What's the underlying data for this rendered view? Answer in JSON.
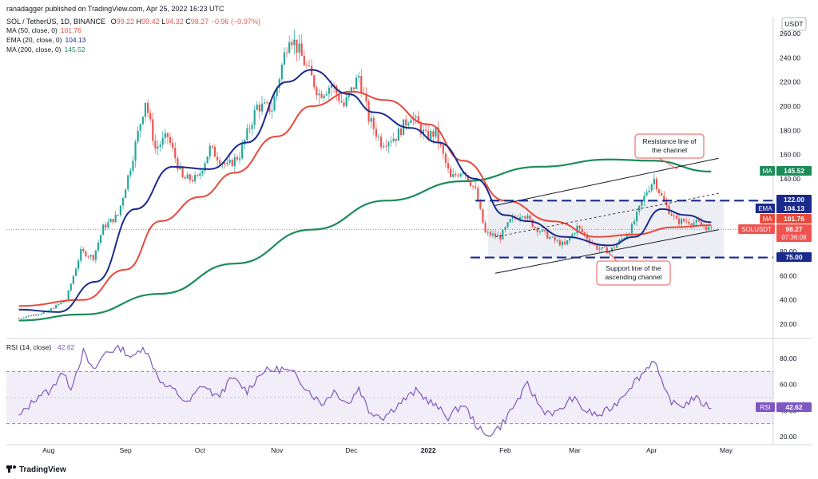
{
  "header": {
    "published": "ranadagger published on TradingView.com, Apr 25, 2022 16:23 UTC",
    "symbol_line": "SOL / TetherUS, 1D, BINANCE",
    "o_label": "O",
    "o_value": "99.22",
    "h_label": "H",
    "h_value": "99.42",
    "l_label": "L",
    "l_value": "94.32",
    "c_label": "C",
    "c_value": "98.27",
    "change": "−0.96 (−0.97%)",
    "currency": "USDT"
  },
  "indicators": [
    {
      "label": "MA (50, close, 0)",
      "value": "101.76",
      "color": "#e8493b"
    },
    {
      "label": "EMA (20, close, 0)",
      "value": "104.13",
      "color": "#1a2a8c"
    },
    {
      "label": "MA (200, close, 0)",
      "value": "145.52",
      "color": "#1b8c5a"
    }
  ],
  "colors": {
    "up": "#26a69a",
    "down": "#ef5350",
    "ma50": "#e8493b",
    "ema20": "#1a2a8c",
    "ma200": "#1b8c5a",
    "rsi": "#7e57c2",
    "level": "#1a2a8c"
  },
  "price_axis": {
    "ticks": [
      "260.00",
      "240.00",
      "220.00",
      "200.00",
      "180.00",
      "160.00",
      "140.00",
      "120.00",
      "100.00",
      "80.00",
      "60.00",
      "40.00",
      "20.00"
    ]
  },
  "rsi_axis": {
    "ticks": [
      "80.00",
      "60.00",
      "40.00",
      "20.00"
    ]
  },
  "time_axis": {
    "labels": [
      "Aug",
      "Sep",
      "Oct",
      "Nov",
      "Dec",
      "2022",
      "Feb",
      "Mar",
      "Apr",
      "May"
    ]
  },
  "price_badges": [
    {
      "tag": "MA",
      "value": "145.52",
      "color": "#1b8c5a"
    },
    {
      "tag": "",
      "value": "122.00",
      "color": "#1a2a8c"
    },
    {
      "tag": "EMA",
      "value": "104.13",
      "color": "#1a2a8c"
    },
    {
      "tag": "MA",
      "value": "101.76",
      "color": "#e8493b"
    },
    {
      "tag": "SOLUSDT",
      "value": "98.27",
      "sub": "07:36:08",
      "color": "#ef5350"
    },
    {
      "tag": "",
      "value": "75.00",
      "color": "#1a2a8c"
    }
  ],
  "rsi_badge": {
    "tag": "RSI",
    "value": "42.62"
  },
  "rsi_legend": "RSI (14, close)",
  "rsi_legend_value": "42.62",
  "annotations": {
    "resistance": [
      "Resistance line of",
      "the channel"
    ],
    "support": [
      "Support line of the",
      "ascending channel"
    ]
  },
  "branding": "TradingView",
  "chart_data": {
    "type": "candlestick",
    "title": "SOL / TetherUS, 1D, BINANCE",
    "x_range": [
      "2022-07-15",
      "2022-05-10"
    ],
    "y_range": [
      15,
      265
    ],
    "horizontal_levels": [
      122,
      75
    ],
    "price_path": [
      [
        "2021-07-20",
        25
      ],
      [
        "2021-07-31",
        30
      ],
      [
        "2021-08-08",
        40
      ],
      [
        "2021-08-14",
        80
      ],
      [
        "2021-08-19",
        75
      ],
      [
        "2021-08-23",
        100
      ],
      [
        "2021-08-29",
        110
      ],
      [
        "2021-09-03",
        150
      ],
      [
        "2021-09-09",
        205
      ],
      [
        "2021-09-13",
        165
      ],
      [
        "2021-09-18",
        175
      ],
      [
        "2021-09-24",
        140
      ],
      [
        "2021-09-30",
        140
      ],
      [
        "2021-10-05",
        165
      ],
      [
        "2021-10-12",
        150
      ],
      [
        "2021-10-17",
        160
      ],
      [
        "2021-10-24",
        200
      ],
      [
        "2021-10-30",
        198
      ],
      [
        "2021-11-06",
        260
      ],
      [
        "2021-11-10",
        245
      ],
      [
        "2021-11-18",
        210
      ],
      [
        "2021-11-23",
        218
      ],
      [
        "2021-11-28",
        200
      ],
      [
        "2021-12-04",
        225
      ],
      [
        "2021-12-08",
        190
      ],
      [
        "2021-12-13",
        170
      ],
      [
        "2021-12-19",
        175
      ],
      [
        "2021-12-25",
        193
      ],
      [
        "2021-12-31",
        175
      ],
      [
        "2022-01-04",
        178
      ],
      [
        "2022-01-10",
        140
      ],
      [
        "2022-01-15",
        148
      ],
      [
        "2022-01-20",
        130
      ],
      [
        "2022-01-24",
        95
      ],
      [
        "2022-01-30",
        92
      ],
      [
        "2022-02-03",
        105
      ],
      [
        "2022-02-08",
        112
      ],
      [
        "2022-02-13",
        100
      ],
      [
        "2022-02-20",
        90
      ],
      [
        "2022-02-25",
        85
      ],
      [
        "2022-03-02",
        100
      ],
      [
        "2022-03-10",
        83
      ],
      [
        "2022-03-15",
        80
      ],
      [
        "2022-03-20",
        90
      ],
      [
        "2022-03-24",
        100
      ],
      [
        "2022-03-30",
        130
      ],
      [
        "2022-04-02",
        140
      ],
      [
        "2022-04-06",
        120
      ],
      [
        "2022-04-11",
        105
      ],
      [
        "2022-04-16",
        105
      ],
      [
        "2022-04-20",
        103
      ],
      [
        "2022-04-25",
        98
      ]
    ],
    "series": [
      {
        "name": "MA (50, close, 0)",
        "last": 101.76
      },
      {
        "name": "EMA (20, close, 0)",
        "last": 104.13
      },
      {
        "name": "MA (200, close, 0)",
        "last": 145.52
      }
    ],
    "ma200_path": [
      [
        "2021-07-20",
        23
      ],
      [
        "2021-08-15",
        28
      ],
      [
        "2021-09-15",
        45
      ],
      [
        "2021-10-15",
        70
      ],
      [
        "2021-11-15",
        98
      ],
      [
        "2021-12-15",
        122
      ],
      [
        "2022-01-15",
        138
      ],
      [
        "2022-02-15",
        150
      ],
      [
        "2022-03-15",
        156
      ],
      [
        "2022-04-01",
        155
      ],
      [
        "2022-04-25",
        146
      ]
    ],
    "ma50_path": [
      [
        "2021-07-20",
        35
      ],
      [
        "2021-08-15",
        40
      ],
      [
        "2021-09-01",
        65
      ],
      [
        "2021-09-15",
        105
      ],
      [
        "2021-10-01",
        125
      ],
      [
        "2021-10-15",
        145
      ],
      [
        "2021-11-01",
        175
      ],
      [
        "2021-11-15",
        200
      ],
      [
        "2021-12-01",
        212
      ],
      [
        "2021-12-15",
        205
      ],
      [
        "2022-01-01",
        185
      ],
      [
        "2022-01-15",
        155
      ],
      [
        "2022-02-01",
        122
      ],
      [
        "2022-02-20",
        105
      ],
      [
        "2022-03-10",
        92
      ],
      [
        "2022-03-25",
        94
      ],
      [
        "2022-04-10",
        100
      ],
      [
        "2022-04-25",
        101.76
      ]
    ],
    "ema20_path": [
      [
        "2021-07-20",
        32
      ],
      [
        "2021-08-05",
        30
      ],
      [
        "2021-08-20",
        55
      ],
      [
        "2021-09-05",
        115
      ],
      [
        "2021-09-20",
        150
      ],
      [
        "2021-10-05",
        148
      ],
      [
        "2021-10-20",
        170
      ],
      [
        "2021-11-05",
        220
      ],
      [
        "2021-11-15",
        230
      ],
      [
        "2021-11-30",
        210
      ],
      [
        "2021-12-10",
        195
      ],
      [
        "2021-12-25",
        182
      ],
      [
        "2022-01-05",
        170
      ],
      [
        "2022-01-20",
        140
      ],
      [
        "2022-02-01",
        110
      ],
      [
        "2022-02-10",
        105
      ],
      [
        "2022-02-25",
        92
      ],
      [
        "2022-03-15",
        85
      ],
      [
        "2022-03-25",
        92
      ],
      [
        "2022-04-05",
        115
      ],
      [
        "2022-04-15",
        110
      ],
      [
        "2022-04-25",
        104.13
      ]
    ],
    "channel": {
      "resistance": [
        [
          "2022-01-28",
          118
        ],
        [
          "2022-04-28",
          157
        ]
      ],
      "support": [
        [
          "2022-01-28",
          62
        ],
        [
          "2022-04-28",
          98
        ]
      ],
      "midline": [
        [
          "2022-01-28",
          92
        ],
        [
          "2022-04-28",
          128
        ]
      ]
    },
    "rsi": {
      "name": "RSI (14, close)",
      "y_range": [
        15,
        95
      ],
      "overbought": 70,
      "oversold": 30,
      "last": 42.62,
      "path": [
        [
          "2021-07-20",
          35
        ],
        [
          "2021-07-28",
          52
        ],
        [
          "2021-08-02",
          55
        ],
        [
          "2021-08-06",
          70
        ],
        [
          "2021-08-10",
          58
        ],
        [
          "2021-08-15",
          85
        ],
        [
          "2021-08-19",
          70
        ],
        [
          "2021-08-24",
          85
        ],
        [
          "2021-08-30",
          88
        ],
        [
          "2021-09-04",
          80
        ],
        [
          "2021-09-08",
          90
        ],
        [
          "2021-09-12",
          75
        ],
        [
          "2021-09-16",
          60
        ],
        [
          "2021-09-21",
          55
        ],
        [
          "2021-09-26",
          45
        ],
        [
          "2021-10-02",
          60
        ],
        [
          "2021-10-08",
          50
        ],
        [
          "2021-10-14",
          65
        ],
        [
          "2021-10-20",
          55
        ],
        [
          "2021-10-26",
          70
        ],
        [
          "2021-11-03",
          72
        ],
        [
          "2021-11-08",
          68
        ],
        [
          "2021-11-14",
          55
        ],
        [
          "2021-11-19",
          45
        ],
        [
          "2021-11-24",
          55
        ],
        [
          "2021-11-30",
          45
        ],
        [
          "2021-12-04",
          58
        ],
        [
          "2021-12-08",
          40
        ],
        [
          "2021-12-14",
          35
        ],
        [
          "2021-12-20",
          45
        ],
        [
          "2021-12-27",
          55
        ],
        [
          "2022-01-03",
          45
        ],
        [
          "2022-01-09",
          35
        ],
        [
          "2022-01-15",
          45
        ],
        [
          "2022-01-20",
          30
        ],
        [
          "2022-01-24",
          20
        ],
        [
          "2022-01-30",
          28
        ],
        [
          "2022-02-05",
          45
        ],
        [
          "2022-02-10",
          60
        ],
        [
          "2022-02-16",
          40
        ],
        [
          "2022-02-22",
          38
        ],
        [
          "2022-02-28",
          50
        ],
        [
          "2022-03-05",
          40
        ],
        [
          "2022-03-11",
          36
        ],
        [
          "2022-03-17",
          44
        ],
        [
          "2022-03-23",
          58
        ],
        [
          "2022-03-29",
          70
        ],
        [
          "2022-04-02",
          80
        ],
        [
          "2022-04-06",
          55
        ],
        [
          "2022-04-10",
          45
        ],
        [
          "2022-04-14",
          44
        ],
        [
          "2022-04-18",
          50
        ],
        [
          "2022-04-22",
          45
        ],
        [
          "2022-04-25",
          42.62
        ]
      ]
    }
  }
}
